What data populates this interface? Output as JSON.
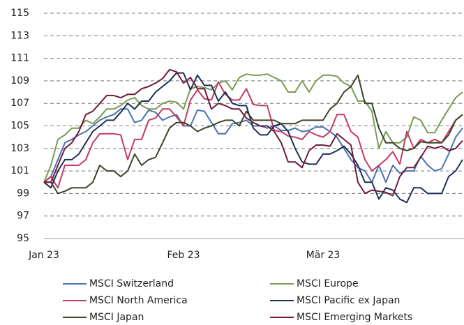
{
  "chart_data": {
    "type": "line",
    "categories": [
      "Jan 23",
      null,
      null,
      null,
      null,
      null,
      null,
      null,
      null,
      null,
      null,
      null,
      null,
      null,
      null,
      null,
      null,
      null,
      null,
      null,
      "Feb 23",
      null,
      null,
      null,
      null,
      null,
      null,
      null,
      null,
      null,
      null,
      null,
      null,
      null,
      null,
      null,
      null,
      null,
      null,
      null,
      "Mär 23",
      null,
      null,
      null,
      null,
      null,
      null,
      null,
      null,
      null,
      null,
      null,
      null,
      null,
      null,
      null,
      null,
      null,
      null,
      null,
      null
    ],
    "ylim": [
      95,
      115
    ],
    "yticks": [
      95,
      97,
      99,
      101,
      103,
      105,
      107,
      109,
      111,
      113,
      115
    ],
    "grid": true,
    "series": [
      {
        "name": "MSCI Switzerland",
        "color": "#4a72b0",
        "values": [
          100,
          100.5,
          102,
          103.5,
          103.8,
          104.2,
          104.5,
          105,
          105.5,
          105.8,
          106,
          106.5,
          106.5,
          105.3,
          105.5,
          106.4,
          106.2,
          105.5,
          105.8,
          106,
          105,
          105,
          106.4,
          106.3,
          105.3,
          104.3,
          104.3,
          105.2,
          105.3,
          105.5,
          105,
          105,
          104.8,
          105,
          104.6,
          104.6,
          104.8,
          104.5,
          104.6,
          104.9,
          104.9,
          104.5,
          104,
          103,
          102,
          101.3,
          101,
          100,
          101.5,
          100,
          101.5,
          100.8,
          101,
          101,
          102.3,
          101.5,
          101,
          101.2,
          102.5,
          104,
          104.8
        ]
      },
      {
        "name": "MSCI Europe",
        "color": "#7a9a52",
        "values": [
          100,
          101.5,
          103.8,
          104.2,
          104.8,
          104.8,
          105.5,
          105.2,
          105.8,
          106.5,
          106.5,
          106.8,
          107.3,
          107.5,
          106.8,
          106.5,
          106.5,
          107,
          107.2,
          107.1,
          106.5,
          108.3,
          108.5,
          108.4,
          108.2,
          108.8,
          109,
          108.2,
          109.3,
          109.6,
          109.5,
          109.5,
          109.6,
          109.3,
          109,
          108,
          108,
          109,
          108,
          109,
          109.5,
          109.5,
          109.4,
          108.8,
          108.5,
          107.2,
          107.2,
          106.3,
          103,
          104.5,
          103.5,
          103.5,
          104,
          105.8,
          105.5,
          104.4,
          104.4,
          105.5,
          106.5,
          107.5,
          108
        ]
      },
      {
        "name": "MSCI North America",
        "color": "#c23a62",
        "values": [
          100,
          100.5,
          99.5,
          101.5,
          101.5,
          101.5,
          102,
          103.5,
          104.3,
          104.3,
          104.3,
          104.2,
          102,
          103.8,
          103.8,
          105.5,
          105.7,
          106.5,
          106.5,
          105.8,
          105,
          107.3,
          108.2,
          107.4,
          107.3,
          108.9,
          107.8,
          107.3,
          107.3,
          108.3,
          106.9,
          106.8,
          106.8,
          104.6,
          104.5,
          104.1,
          104,
          103.8,
          104.5,
          104.2,
          104,
          104.5,
          106,
          106,
          104.5,
          104,
          102,
          101,
          101.5,
          102,
          102.7,
          101.6,
          104.5,
          103,
          103.8,
          103.5,
          103.8,
          103.5,
          104.5,
          105.5,
          106
        ]
      },
      {
        "name": "MSCI Pacific ex Japan",
        "color": "#1c2f55",
        "values": [
          100,
          99.5,
          101,
          102,
          102,
          102.5,
          103.5,
          104.5,
          105,
          105.5,
          105.5,
          106.2,
          107,
          106.5,
          107.2,
          107.2,
          108,
          108.5,
          109,
          109.7,
          109.7,
          108.2,
          109.5,
          108.6,
          108.6,
          107.2,
          108,
          107,
          106.8,
          106.8,
          104.8,
          104.2,
          104.2,
          105,
          105.2,
          104.5,
          103,
          101.8,
          101.6,
          101.6,
          102.5,
          102.5,
          102.8,
          103.2,
          102.5,
          101.5,
          100,
          100,
          98.5,
          99.5,
          99.3,
          98.5,
          98.2,
          99.5,
          99.5,
          99,
          99,
          99,
          100.5,
          101,
          102
        ]
      },
      {
        "name": "MSCI Japan",
        "color": "#3b4428",
        "values": [
          100,
          100,
          99,
          99.2,
          99.5,
          99.5,
          99.5,
          100,
          101.5,
          101,
          101,
          100.5,
          101,
          102.5,
          101.5,
          102,
          102.2,
          103.5,
          104.8,
          105.3,
          105.3,
          105,
          104.5,
          104.8,
          105,
          105.3,
          105.5,
          105.5,
          105,
          106.3,
          105.5,
          105.5,
          105.5,
          105.5,
          105.2,
          105.2,
          105.2,
          105.5,
          105.5,
          105.5,
          105.5,
          106.5,
          107,
          108,
          108.5,
          109.5,
          107,
          107,
          104.8,
          103.5,
          103.5,
          103,
          102.8,
          103,
          103.6,
          103.5,
          103.5,
          103.5,
          104.2,
          105.5,
          106
        ]
      },
      {
        "name": "MSCI Emerging Markets",
        "color": "#701a3a",
        "values": [
          100,
          100,
          101.5,
          103,
          103.5,
          104.5,
          106,
          106.3,
          107,
          107.7,
          107.7,
          107.5,
          107.8,
          107.8,
          108.3,
          108.5,
          108.8,
          109.2,
          110,
          109.8,
          108.8,
          109.3,
          108.3,
          108.3,
          106.5,
          107,
          106.8,
          106.5,
          106.5,
          105.7,
          105.3,
          105,
          105,
          104.5,
          103.5,
          101.8,
          101.8,
          101.3,
          102.8,
          103.3,
          103.3,
          103.2,
          104.3,
          103.8,
          103.3,
          100,
          99,
          99.3,
          99.2,
          99.1,
          98.8,
          100.5,
          101.3,
          101.3,
          102.2,
          103.2,
          103,
          103.2,
          102.8,
          103,
          103.7
        ]
      }
    ]
  }
}
